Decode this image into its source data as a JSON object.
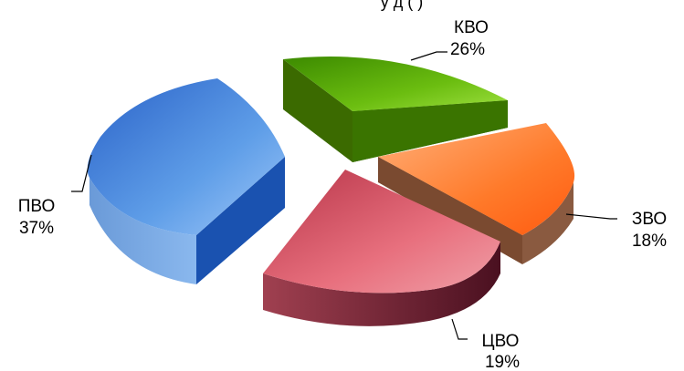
{
  "chart_data": {
    "type": "pie",
    "title_fragment": "у   д ( )",
    "slices": [
      {
        "name": "КВО",
        "value": 26,
        "label": "26%",
        "color_top": "#5aa400",
        "color_side": "#2e5c00"
      },
      {
        "name": "ЗВО",
        "value": 18,
        "label": "18%",
        "color_top": "#ff7a2a",
        "color_side": "#8a4a2c"
      },
      {
        "name": "ЦВО",
        "value": 19,
        "label": "19%",
        "color_top": "#d24a5c",
        "color_side": "#7a2330"
      },
      {
        "name": "ПВО",
        "value": 37,
        "label": "37%",
        "color_top": "#3f7fd8",
        "color_side": "#1a52b0"
      }
    ],
    "legend": "none",
    "exploded": true,
    "three_d": true
  }
}
